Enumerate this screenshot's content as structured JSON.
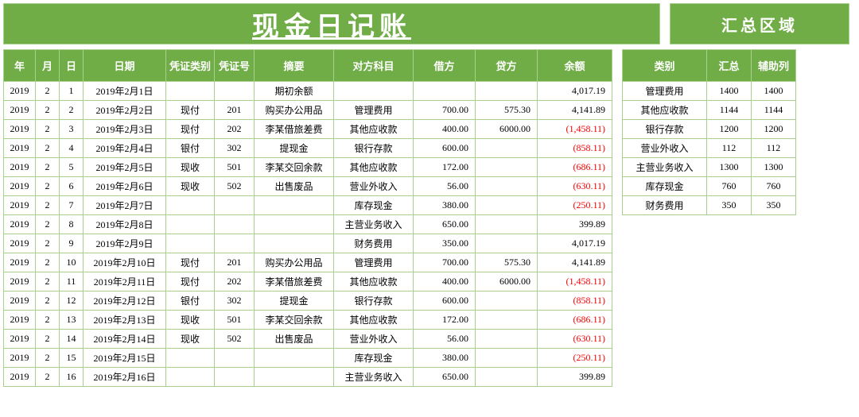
{
  "colors": {
    "header_bg": "#70ad47",
    "header_text": "#ffffff",
    "border": "#a8d08d",
    "negative": "#ff0000",
    "bg": "#ffffff"
  },
  "titles": {
    "main": "现金日记账",
    "summary": "汇总区域"
  },
  "main_headers": {
    "year": "年",
    "month": "月",
    "day": "日",
    "date": "日期",
    "vtype": "凭证类别",
    "vno": "凭证号",
    "summary": "摘要",
    "acct": "对方科目",
    "debit": "借方",
    "credit": "贷方",
    "balance": "余额"
  },
  "summary_headers": {
    "cat": "类别",
    "total": "汇总",
    "aux": "辅助列"
  },
  "rows": [
    {
      "y": "2019",
      "m": "2",
      "d": "1",
      "date": "2019年2月1日",
      "vt": "",
      "vn": "",
      "sum": "期初余额",
      "acct": "",
      "dr": "",
      "cr": "",
      "bal": "4,017.19",
      "neg": false
    },
    {
      "y": "2019",
      "m": "2",
      "d": "2",
      "date": "2019年2月2日",
      "vt": "现付",
      "vn": "201",
      "sum": "购买办公用品",
      "acct": "管理费用",
      "dr": "700.00",
      "cr": "575.30",
      "bal": "4,141.89",
      "neg": false
    },
    {
      "y": "2019",
      "m": "2",
      "d": "3",
      "date": "2019年2月3日",
      "vt": "现付",
      "vn": "202",
      "sum": "李某借旅差费",
      "acct": "其他应收款",
      "dr": "400.00",
      "cr": "6000.00",
      "bal": "(1,458.11)",
      "neg": true
    },
    {
      "y": "2019",
      "m": "2",
      "d": "4",
      "date": "2019年2月4日",
      "vt": "银付",
      "vn": "302",
      "sum": "提现金",
      "acct": "银行存款",
      "dr": "600.00",
      "cr": "",
      "bal": "(858.11)",
      "neg": true
    },
    {
      "y": "2019",
      "m": "2",
      "d": "5",
      "date": "2019年2月5日",
      "vt": "现收",
      "vn": "501",
      "sum": "李某交回余款",
      "acct": "其他应收款",
      "dr": "172.00",
      "cr": "",
      "bal": "(686.11)",
      "neg": true
    },
    {
      "y": "2019",
      "m": "2",
      "d": "6",
      "date": "2019年2月6日",
      "vt": "现收",
      "vn": "502",
      "sum": "出售废品",
      "acct": "营业外收入",
      "dr": "56.00",
      "cr": "",
      "bal": "(630.11)",
      "neg": true
    },
    {
      "y": "2019",
      "m": "2",
      "d": "7",
      "date": "2019年2月7日",
      "vt": "",
      "vn": "",
      "sum": "",
      "acct": "库存现金",
      "dr": "380.00",
      "cr": "",
      "bal": "(250.11)",
      "neg": true
    },
    {
      "y": "2019",
      "m": "2",
      "d": "8",
      "date": "2019年2月8日",
      "vt": "",
      "vn": "",
      "sum": "",
      "acct": "主营业务收入",
      "dr": "650.00",
      "cr": "",
      "bal": "399.89",
      "neg": false
    },
    {
      "y": "2019",
      "m": "2",
      "d": "9",
      "date": "2019年2月9日",
      "vt": "",
      "vn": "",
      "sum": "",
      "acct": "财务费用",
      "dr": "350.00",
      "cr": "",
      "bal": "4,017.19",
      "neg": false
    },
    {
      "y": "2019",
      "m": "2",
      "d": "10",
      "date": "2019年2月10日",
      "vt": "现付",
      "vn": "201",
      "sum": "购买办公用品",
      "acct": "管理费用",
      "dr": "700.00",
      "cr": "575.30",
      "bal": "4,141.89",
      "neg": false
    },
    {
      "y": "2019",
      "m": "2",
      "d": "11",
      "date": "2019年2月11日",
      "vt": "现付",
      "vn": "202",
      "sum": "李某借旅差费",
      "acct": "其他应收款",
      "dr": "400.00",
      "cr": "6000.00",
      "bal": "(1,458.11)",
      "neg": true
    },
    {
      "y": "2019",
      "m": "2",
      "d": "12",
      "date": "2019年2月12日",
      "vt": "银付",
      "vn": "302",
      "sum": "提现金",
      "acct": "银行存款",
      "dr": "600.00",
      "cr": "",
      "bal": "(858.11)",
      "neg": true
    },
    {
      "y": "2019",
      "m": "2",
      "d": "13",
      "date": "2019年2月13日",
      "vt": "现收",
      "vn": "501",
      "sum": "李某交回余款",
      "acct": "其他应收款",
      "dr": "172.00",
      "cr": "",
      "bal": "(686.11)",
      "neg": true
    },
    {
      "y": "2019",
      "m": "2",
      "d": "14",
      "date": "2019年2月14日",
      "vt": "现收",
      "vn": "502",
      "sum": "出售废品",
      "acct": "营业外收入",
      "dr": "56.00",
      "cr": "",
      "bal": "(630.11)",
      "neg": true
    },
    {
      "y": "2019",
      "m": "2",
      "d": "15",
      "date": "2019年2月15日",
      "vt": "",
      "vn": "",
      "sum": "",
      "acct": "库存现金",
      "dr": "380.00",
      "cr": "",
      "bal": "(250.11)",
      "neg": true
    },
    {
      "y": "2019",
      "m": "2",
      "d": "16",
      "date": "2019年2月16日",
      "vt": "",
      "vn": "",
      "sum": "",
      "acct": "主营业务收入",
      "dr": "650.00",
      "cr": "",
      "bal": "399.89",
      "neg": false
    }
  ],
  "summary_rows": [
    {
      "cat": "管理费用",
      "tot": "1400",
      "aux": "1400"
    },
    {
      "cat": "其他应收款",
      "tot": "1144",
      "aux": "1144"
    },
    {
      "cat": "银行存款",
      "tot": "1200",
      "aux": "1200"
    },
    {
      "cat": "营业外收入",
      "tot": "112",
      "aux": "112"
    },
    {
      "cat": "主营业务收入",
      "tot": "1300",
      "aux": "1300"
    },
    {
      "cat": "库存现金",
      "tot": "760",
      "aux": "760"
    },
    {
      "cat": "财务费用",
      "tot": "350",
      "aux": "350"
    }
  ]
}
